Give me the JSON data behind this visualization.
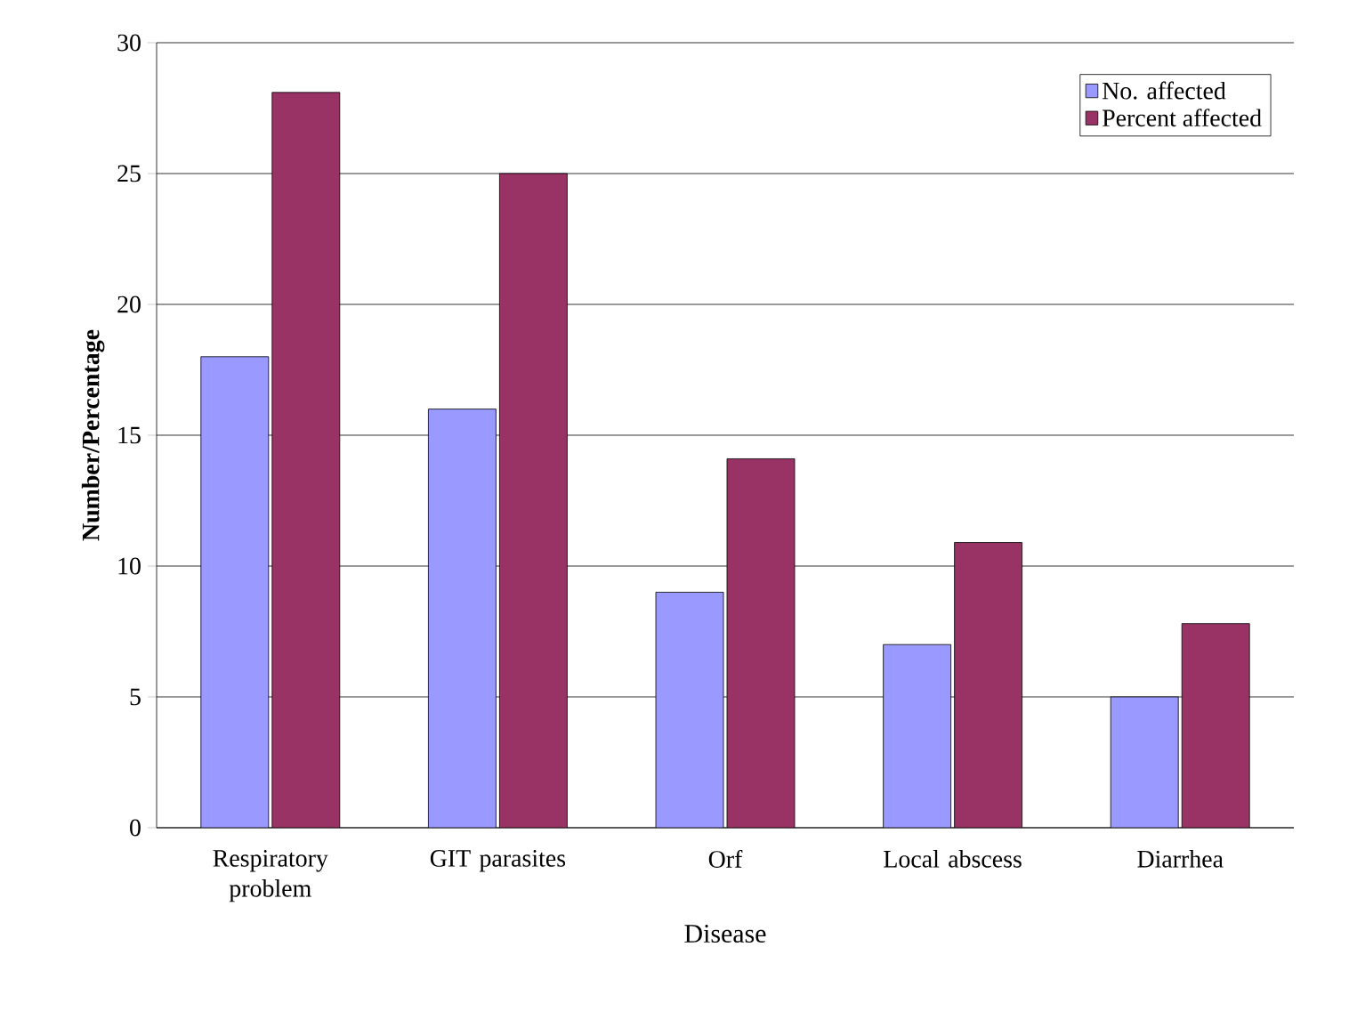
{
  "chart_data": {
    "type": "bar",
    "xlabel": "Disease",
    "ylabel": "Number/Percentage",
    "categories": [
      "Respiratory problem",
      "GIT parasites",
      "Orf",
      "Local abscess",
      "Diarrhea"
    ],
    "series": [
      {
        "name": "No. affected",
        "color": "#9999ff",
        "values": [
          18,
          16,
          9,
          7,
          5
        ]
      },
      {
        "name": "Percent affected",
        "color": "#993366",
        "values": [
          28.1,
          25,
          14.1,
          10.9,
          7.8
        ]
      }
    ],
    "ylim": [
      0,
      30
    ],
    "yticks": [
      0,
      5,
      10,
      15,
      20,
      25,
      30
    ],
    "grid": "y",
    "legend": "top right"
  }
}
